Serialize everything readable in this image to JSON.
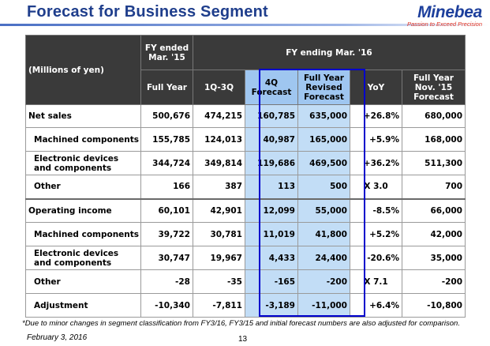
{
  "title": "Forecast for Business Segment",
  "logo": {
    "name": "Minebea",
    "tagline": "Passion to Exceed Precision"
  },
  "table": {
    "units": "(Millions of yen)",
    "group_fy15": "FY ended\nMar. '15",
    "group_fy16": "FY ending Mar. '16",
    "columns": {
      "full_year": "Full Year",
      "q1_q3": "1Q-3Q",
      "q4": "4Q\nForecast",
      "fy_revised": "Full Year\nRevised\nForecast",
      "yoy": "YoY",
      "fy_nov": "Full Year\nNov. '15\nForecast"
    },
    "rows": [
      {
        "label": "Net sales",
        "values": [
          "500,676",
          "474,215",
          "160,785",
          "635,000",
          "+26.8%",
          "680,000"
        ]
      },
      {
        "label": "Machined components",
        "values": [
          "155,785",
          "124,013",
          "40,987",
          "165,000",
          "+5.9%",
          "168,000"
        ]
      },
      {
        "label": "Electronic devices and components",
        "values": [
          "344,724",
          "349,814",
          "119,686",
          "469,500",
          "+36.2%",
          "511,300"
        ]
      },
      {
        "label": "Other",
        "values": [
          "166",
          "387",
          "113",
          "500",
          "X 3.0",
          "700"
        ]
      },
      {
        "label": "Operating income",
        "values": [
          "60,101",
          "42,901",
          "12,099",
          "55,000",
          "-8.5%",
          "66,000"
        ]
      },
      {
        "label": "Machined components",
        "values": [
          "39,722",
          "30,781",
          "11,019",
          "41,800",
          "+5.2%",
          "42,000"
        ]
      },
      {
        "label": "Electronic devices and components",
        "values": [
          "30,747",
          "19,967",
          "4,433",
          "24,400",
          "-20.6%",
          "35,000"
        ]
      },
      {
        "label": "Other",
        "values": [
          "-28",
          "-35",
          "-165",
          "-200",
          "X 7.1",
          "-200"
        ]
      },
      {
        "label": "Adjustment",
        "values": [
          "-10,340",
          "-7,811",
          "-3,189",
          "-11,000",
          "+6.4%",
          "-10,800"
        ]
      }
    ]
  },
  "footnote": "*Due to minor changes in segment classification from FY3/16, FY3/15 and initial forecast numbers are also adjusted for comparison.",
  "date": "February 3, 2016",
  "page_number": "13"
}
